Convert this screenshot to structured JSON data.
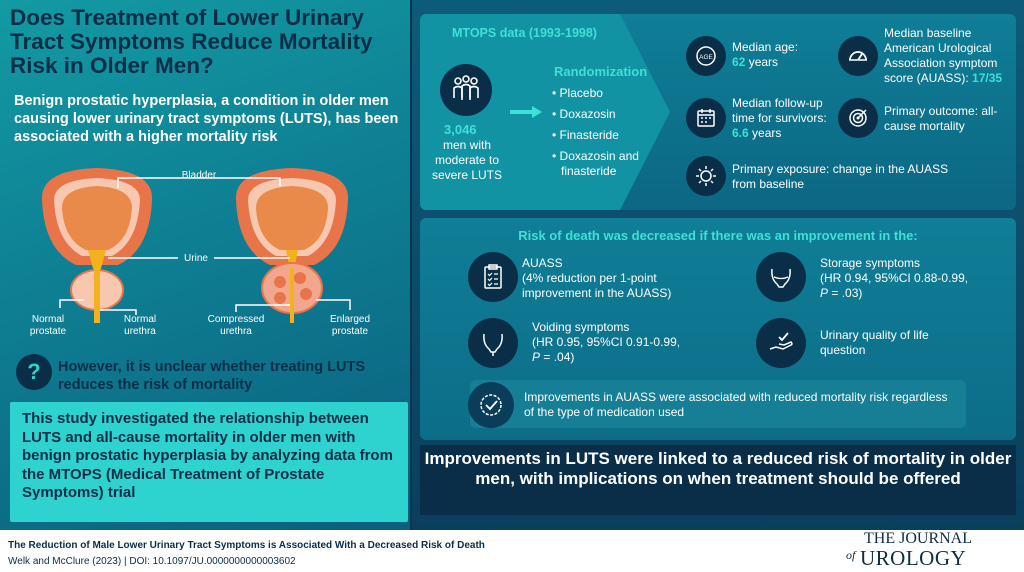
{
  "left": {
    "title": "Does Treatment of Lower Urinary Tract Symptoms Reduce Mortality Risk in Older Men?",
    "intro": "Benign prostatic hyperplasia, a condition in older men causing lower urinary tract symptoms (LUTS), has been associated with a higher mortality risk",
    "anatomy": {
      "bladder": "Bladder",
      "urine": "Urine",
      "normal_prostate": "Normal prostate",
      "normal_urethra": "Normal urethra",
      "compressed_urethra": "Compressed urethra",
      "enlarged_prostate": "Enlarged prostate"
    },
    "question_icon": "?",
    "question": "However, it is unclear whether treating LUTS reduces the risk of mortality",
    "study": "This study investigated the relationship between LUTS and all-cause mortality in older men with benign prostatic hyperplasia by analyzing data from the MTOPS (Medical Treatment of Prostate Symptoms) trial"
  },
  "mtops": {
    "heading": "MTOPS data (1993-1998)",
    "count": "3,046",
    "count_desc": "men with moderate to severe LUTS",
    "randomization_title": "Randomization",
    "arms": [
      "Placebo",
      "Doxazosin",
      "Finasteride",
      "Doxazosin and finasteride"
    ],
    "median_age_label": "Median age:",
    "median_age_value": "62",
    "median_age_unit": " years",
    "age_icon_text": "AGE",
    "followup_label": "Median follow-up time for survivors:",
    "followup_value": "6.6",
    "followup_unit": " years",
    "auass_label": "Median baseline American Urological Association symptom score (AUASS):",
    "auass_value": "17/35",
    "primary_outcome": "Primary outcome: all-cause mortality",
    "primary_exposure": "Primary exposure: change in the AUASS from baseline"
  },
  "findings": {
    "heading": "Risk of death was decreased if there was an improvement in the:",
    "auass_title": "AUASS",
    "auass_detail": "(4% reduction per 1-point improvement in the AUASS)",
    "storage_title": "Storage symptoms",
    "storage_detail_a": "(HR 0.94, 95%CI 0.88-0.99,",
    "storage_p_label": "P",
    "storage_p_value": " = .03)",
    "voiding_title": "Voiding symptoms",
    "voiding_detail_a": "(HR 0.95, 95%CI 0.91-0.99,",
    "voiding_p_label": "P",
    "voiding_p_value": " = .04)",
    "qol": "Urinary quality of life question",
    "note": "Improvements in AUASS were associated with reduced mortality risk regardless of the type of medication used"
  },
  "conclusion": "Improvements in LUTS were linked to a reduced risk of mortality in older men, with implications on when treatment should be offered",
  "footer": {
    "title": "The Reduction of Male Lower Urinary Tract Symptoms is Associated With a Decreased Risk of Death",
    "cite": "Welk and McClure (2023)  |  DOI: 10.1097/JU.0000000000003602",
    "journal_the": "THE JOURNAL",
    "journal_of": "of",
    "journal_name": "UROLOGY"
  },
  "colors": {
    "navy": "#0a2e47",
    "teal_accent": "#3fe0d6",
    "panel": "#0f7e96",
    "study_box": "#2ed3cf"
  }
}
